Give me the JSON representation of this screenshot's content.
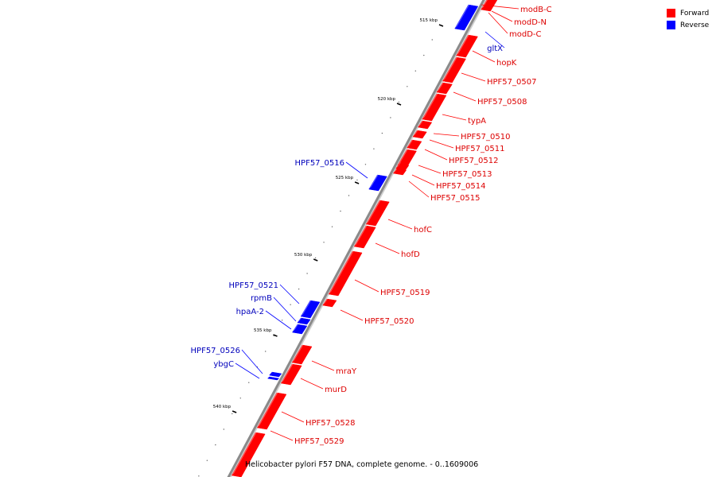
{
  "colors": {
    "forward": "#ff0000",
    "reverse": "#0000ff",
    "backbone": "#999999",
    "forward_label": "#dd0000",
    "reverse_label": "#0000bb"
  },
  "legend": [
    {
      "label": "Forward",
      "color": "#ff0000"
    },
    {
      "label": "Reverse",
      "color": "#0000ff"
    }
  ],
  "caption": "Helicobacter pylori F57 DNA, complete genome. - 0..1609006",
  "ruler": [
    {
      "label": "515 kbp",
      "pos_kbp": 515
    },
    {
      "label": "520 kbp",
      "pos_kbp": 520
    },
    {
      "label": "525 kbp",
      "pos_kbp": 525
    },
    {
      "label": "530 kbp",
      "pos_kbp": 530
    },
    {
      "label": "535 kbp",
      "pos_kbp": 535
    },
    {
      "label": "540 kbp",
      "pos_kbp": 540
    }
  ],
  "genes": [
    {
      "name": "modB-C",
      "strand": "forward"
    },
    {
      "name": "modD-N",
      "strand": "forward"
    },
    {
      "name": "modD-C",
      "strand": "forward"
    },
    {
      "name": "gltX",
      "strand": "reverse"
    },
    {
      "name": "hopK",
      "strand": "forward"
    },
    {
      "name": "HPF57_0507",
      "strand": "forward"
    },
    {
      "name": "HPF57_0508",
      "strand": "forward"
    },
    {
      "name": "typA",
      "strand": "forward"
    },
    {
      "name": "HPF57_0510",
      "strand": "forward"
    },
    {
      "name": "HPF57_0511",
      "strand": "forward"
    },
    {
      "name": "HPF57_0512",
      "strand": "forward"
    },
    {
      "name": "HPF57_0513",
      "strand": "forward"
    },
    {
      "name": "HPF57_0514",
      "strand": "forward"
    },
    {
      "name": "HPF57_0515",
      "strand": "forward"
    },
    {
      "name": "HPF57_0516",
      "strand": "reverse"
    },
    {
      "name": "hofC",
      "strand": "forward"
    },
    {
      "name": "hofD",
      "strand": "forward"
    },
    {
      "name": "HPF57_0519",
      "strand": "forward"
    },
    {
      "name": "HPF57_0520",
      "strand": "forward"
    },
    {
      "name": "HPF57_0521",
      "strand": "reverse"
    },
    {
      "name": "rpmB",
      "strand": "reverse"
    },
    {
      "name": "hpaA-2",
      "strand": "reverse"
    },
    {
      "name": "HPF57_0526",
      "strand": "reverse"
    },
    {
      "name": "ybgC",
      "strand": "reverse"
    },
    {
      "name": "mraY",
      "strand": "forward"
    },
    {
      "name": "murD",
      "strand": "forward"
    },
    {
      "name": "HPF57_0528",
      "strand": "forward"
    },
    {
      "name": "HPF57_0529",
      "strand": "forward"
    }
  ]
}
